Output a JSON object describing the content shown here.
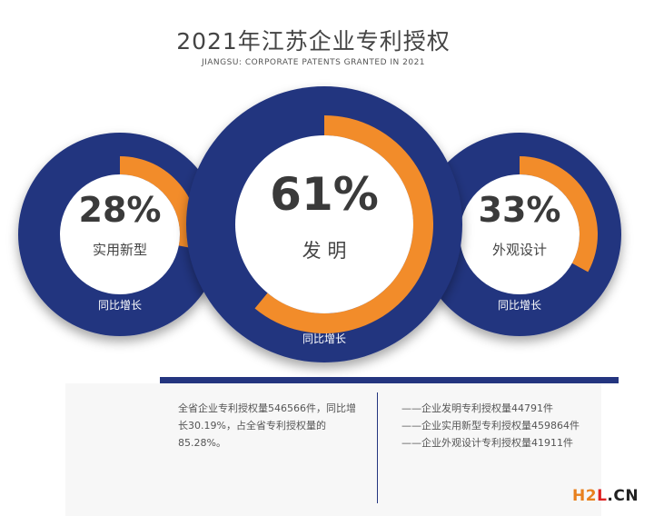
{
  "title": "2021年江苏企业专利授权",
  "subtitle": "JIANGSU: CORPORATE PATENTS GRANTED IN 2021",
  "colors": {
    "navy": "#24357f",
    "orange": "#f28c2a",
    "panel": "#f7f7f7",
    "text": "#555555"
  },
  "chart_data": {
    "type": "gauge",
    "title": "2021年江苏企业专利授权",
    "series": [
      {
        "category": "实用新型",
        "value": 28,
        "display": "28%",
        "caption": "同比增长"
      },
      {
        "category": "发 明",
        "value": 61,
        "display": "61%",
        "caption": "同比增长"
      },
      {
        "category": "外观设计",
        "value": 33,
        "display": "33%",
        "caption": "同比增长"
      }
    ],
    "unit": "%",
    "max": 100
  },
  "summary": "全省企业专利授权量546566件，同比增长30.19%，占全省专利授权量的85.28%。",
  "details": [
    "——企业发明专利授权量44791件",
    "——企业实用新型专利授权量459864件",
    "——企业外观设计专利授权量41911件"
  ],
  "watermark": {
    "h2": "H2",
    "l": "L",
    "cn": ".CN"
  }
}
